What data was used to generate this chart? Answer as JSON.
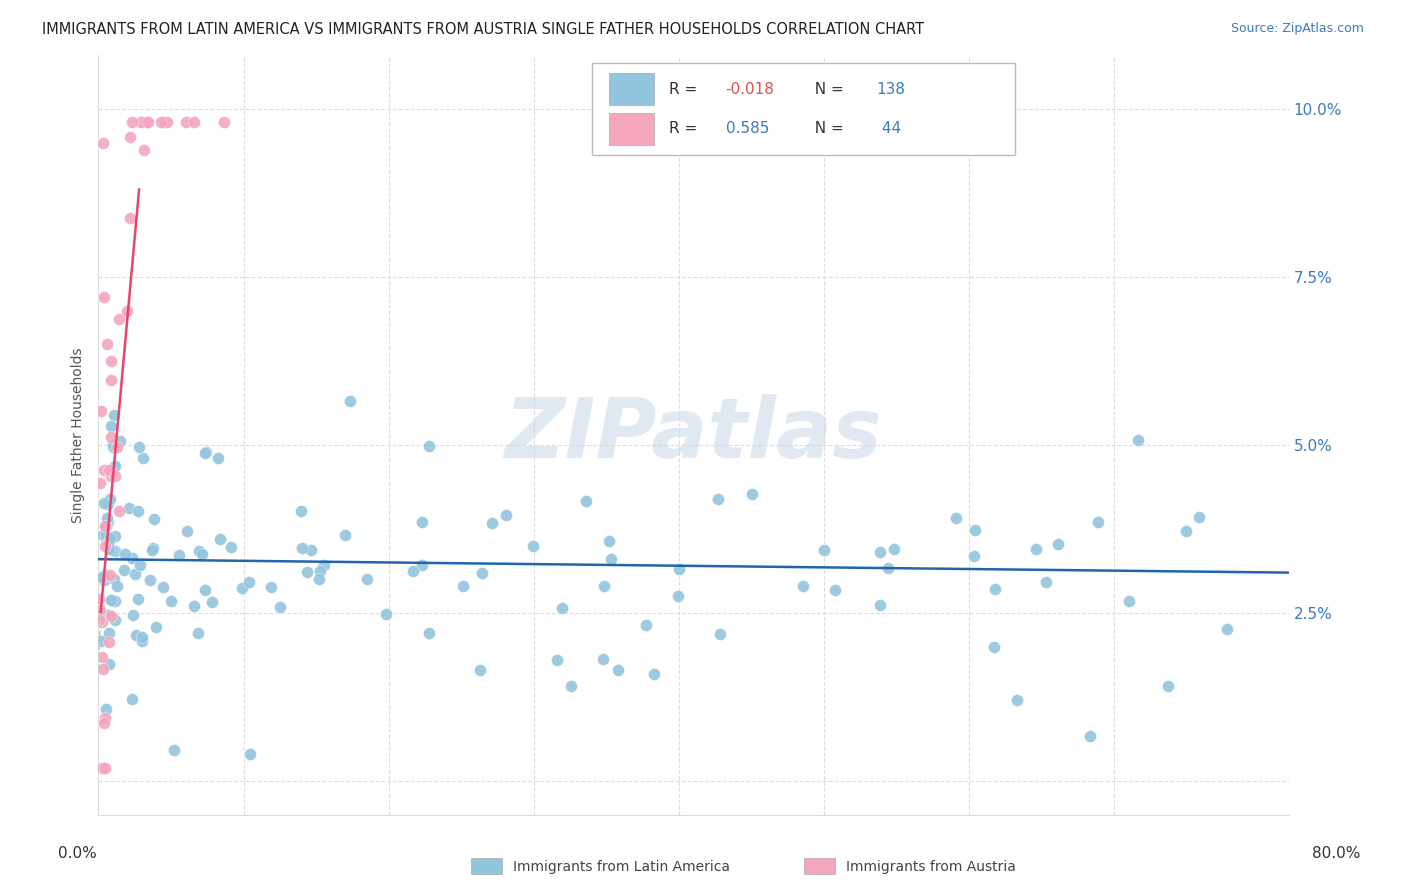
{
  "title": "IMMIGRANTS FROM LATIN AMERICA VS IMMIGRANTS FROM AUSTRIA SINGLE FATHER HOUSEHOLDS CORRELATION CHART",
  "source": "Source: ZipAtlas.com",
  "ylabel": "Single Father Households",
  "legend_label1": "Immigrants from Latin America",
  "legend_label2": "Immigrants from Austria",
  "R1": "-0.018",
  "N1": "138",
  "R2": "0.585",
  "N2": "44",
  "color_blue": "#92c5de",
  "color_pink": "#f4a6bd",
  "line_blue": "#2166ac",
  "line_pink": "#e8446a",
  "line_pink_dashed": "#cccccc",
  "watermark": "ZIPatlas",
  "xlim": [
    0.0,
    0.82
  ],
  "ylim": [
    -0.005,
    0.108
  ],
  "yticks": [
    0.0,
    0.025,
    0.05,
    0.075,
    0.1
  ],
  "ytick_labels_right": [
    "",
    "2.5%",
    "5.0%",
    "7.5%",
    "10.0%"
  ],
  "xtick_vals": [
    0.0,
    0.1,
    0.2,
    0.3,
    0.4,
    0.5,
    0.6,
    0.7,
    0.8
  ],
  "title_fontsize": 10.5,
  "source_fontsize": 9,
  "axis_label_fontsize": 10,
  "tick_fontsize": 11,
  "legend_fontsize": 11
}
